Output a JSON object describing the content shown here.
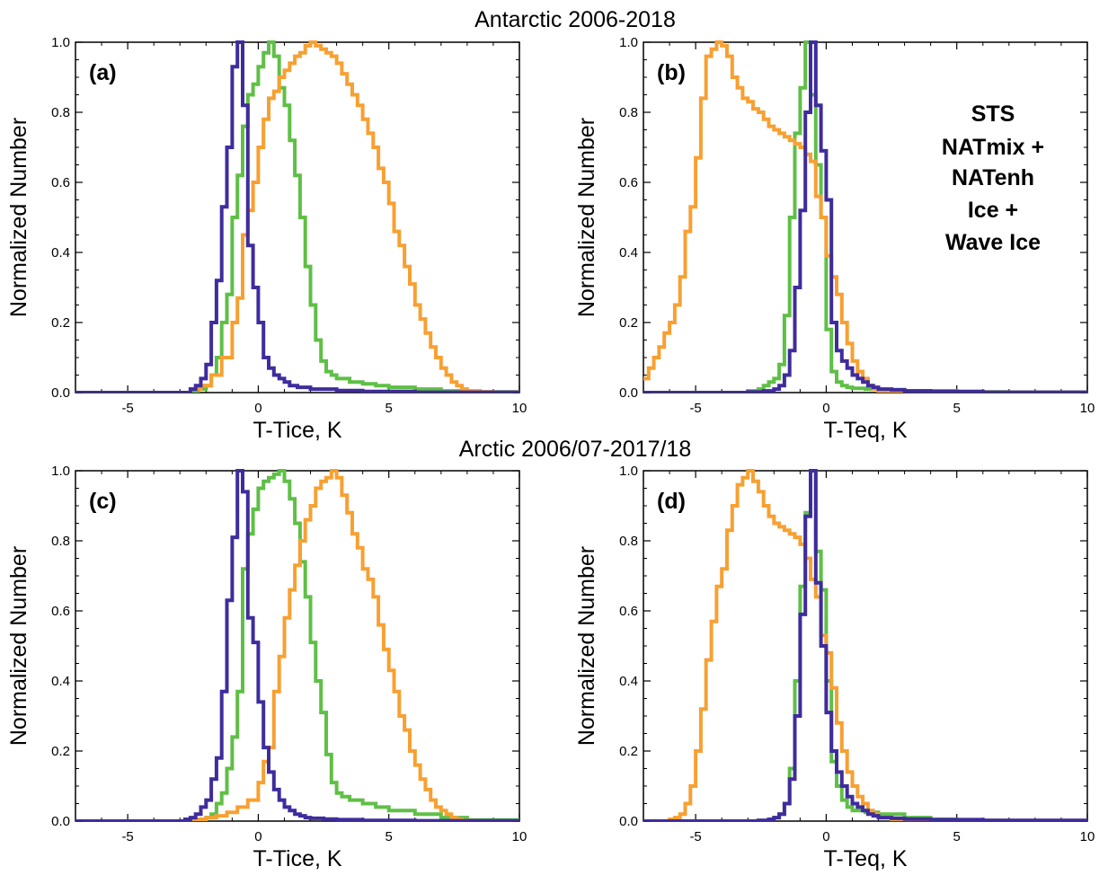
{
  "figure": {
    "row_titles": [
      "Antarctic 2006-2018",
      "Arctic 2006/07-2017/18"
    ],
    "colors": {
      "STS": "#5fbf46",
      "NAT": "#f7a032",
      "ICE": "#3f2c9c"
    },
    "legend": [
      {
        "label": "STS",
        "series": "STS"
      },
      {
        "label": "NATmix +",
        "series": "NAT"
      },
      {
        "label": "NATenh",
        "series": "NAT"
      },
      {
        "label": "Ice +",
        "series": "ICE"
      },
      {
        "label": "Wave Ice",
        "series": "ICE"
      }
    ]
  },
  "chart_data": [
    {
      "type": "line",
      "panel_label": "(a)",
      "xlabel": "T-Tice, K",
      "ylabel": "Normalized Number",
      "xlim": [
        -7,
        10
      ],
      "ylim": [
        0,
        1.0
      ],
      "xticks": [
        -5,
        0,
        5,
        10
      ],
      "yticks": [
        0.0,
        0.2,
        0.4,
        0.6,
        0.8,
        1.0
      ],
      "step": true,
      "series": [
        {
          "key": "STS",
          "x": [
            -7,
            -2.5,
            -2.3,
            -2.0,
            -1.8,
            -1.6,
            -1.4,
            -1.2,
            -1.0,
            -0.8,
            -0.6,
            -0.4,
            -0.2,
            0.0,
            0.2,
            0.4,
            0.6,
            0.8,
            1.0,
            1.2,
            1.4,
            1.6,
            1.8,
            2.0,
            2.2,
            2.4,
            2.6,
            2.8,
            3.0,
            3.5,
            4.0,
            4.5,
            5.0,
            6.0,
            7.0,
            8.0,
            10.0
          ],
          "y": [
            0,
            0,
            0.01,
            0.02,
            0.05,
            0.1,
            0.2,
            0.28,
            0.5,
            0.62,
            0.76,
            0.85,
            0.88,
            0.93,
            0.97,
            1.0,
            0.96,
            0.87,
            0.82,
            0.72,
            0.62,
            0.5,
            0.36,
            0.25,
            0.15,
            0.09,
            0.06,
            0.05,
            0.04,
            0.03,
            0.025,
            0.02,
            0.015,
            0.01,
            0.005,
            0.002,
            0
          ]
        },
        {
          "key": "NAT",
          "x": [
            -7,
            -2.6,
            -2.2,
            -1.8,
            -1.4,
            -1.0,
            -0.8,
            -0.6,
            -0.4,
            -0.2,
            0.0,
            0.2,
            0.4,
            0.6,
            0.8,
            1.0,
            1.2,
            1.4,
            1.6,
            1.8,
            2.0,
            2.2,
            2.4,
            2.6,
            2.8,
            3.0,
            3.2,
            3.4,
            3.6,
            3.8,
            4.0,
            4.2,
            4.4,
            4.6,
            4.8,
            5.0,
            5.2,
            5.4,
            5.6,
            5.8,
            6.0,
            6.2,
            6.4,
            6.6,
            6.8,
            7.0,
            7.2,
            7.4,
            7.6,
            7.8,
            8.0,
            8.5,
            9.0,
            10.0
          ],
          "y": [
            0,
            0.01,
            0.02,
            0.05,
            0.1,
            0.2,
            0.27,
            0.45,
            0.52,
            0.6,
            0.7,
            0.78,
            0.84,
            0.86,
            0.9,
            0.92,
            0.94,
            0.96,
            0.97,
            0.99,
            1.0,
            0.99,
            0.98,
            0.97,
            0.96,
            0.94,
            0.91,
            0.88,
            0.85,
            0.82,
            0.78,
            0.74,
            0.7,
            0.64,
            0.6,
            0.54,
            0.46,
            0.42,
            0.36,
            0.31,
            0.25,
            0.21,
            0.17,
            0.13,
            0.1,
            0.07,
            0.05,
            0.03,
            0.02,
            0.01,
            0.005,
            0.002,
            0.001,
            0
          ]
        },
        {
          "key": "ICE",
          "x": [
            -7,
            -3.0,
            -2.6,
            -2.4,
            -2.2,
            -2.0,
            -1.8,
            -1.6,
            -1.4,
            -1.2,
            -1.0,
            -0.8,
            -0.6,
            -0.4,
            -0.2,
            0.0,
            0.2,
            0.4,
            0.6,
            0.8,
            1.0,
            1.2,
            1.5,
            2.0,
            3.0,
            4.0,
            6.0,
            10.0
          ],
          "y": [
            0,
            0,
            0.01,
            0.02,
            0.04,
            0.08,
            0.2,
            0.32,
            0.53,
            0.7,
            0.93,
            1.0,
            0.82,
            0.42,
            0.3,
            0.2,
            0.1,
            0.07,
            0.05,
            0.04,
            0.03,
            0.02,
            0.015,
            0.01,
            0.006,
            0.003,
            0.001,
            0
          ]
        }
      ]
    },
    {
      "type": "line",
      "panel_label": "(b)",
      "xlabel": "T-Teq, K",
      "ylabel": "Normalized Number",
      "xlim": [
        -7,
        10
      ],
      "ylim": [
        0,
        1.0
      ],
      "xticks": [
        -5,
        0,
        5,
        10
      ],
      "yticks": [
        0.0,
        0.2,
        0.4,
        0.6,
        0.8,
        1.0
      ],
      "step": true,
      "series": [
        {
          "key": "STS",
          "x": [
            -7,
            -3.0,
            -2.6,
            -2.4,
            -2.2,
            -2.0,
            -1.8,
            -1.6,
            -1.4,
            -1.2,
            -1.0,
            -0.8,
            -0.6,
            -0.4,
            -0.2,
            0.0,
            0.2,
            0.4,
            0.6,
            0.8,
            1.0,
            1.5,
            2.0,
            3.0,
            5.0,
            7.0,
            10.0
          ],
          "y": [
            0,
            0.005,
            0.01,
            0.02,
            0.03,
            0.04,
            0.08,
            0.22,
            0.5,
            0.74,
            0.87,
            1.0,
            0.85,
            0.65,
            0.5,
            0.18,
            0.06,
            0.03,
            0.02,
            0.015,
            0.012,
            0.01,
            0.008,
            0.005,
            0.002,
            0.001,
            0
          ]
        },
        {
          "key": "NAT",
          "x": [
            -7,
            -6.8,
            -6.6,
            -6.4,
            -6.2,
            -6.0,
            -5.8,
            -5.6,
            -5.4,
            -5.2,
            -5.0,
            -4.8,
            -4.6,
            -4.4,
            -4.2,
            -4.0,
            -3.8,
            -3.6,
            -3.4,
            -3.2,
            -3.0,
            -2.8,
            -2.6,
            -2.4,
            -2.2,
            -2.0,
            -1.8,
            -1.6,
            -1.4,
            -1.2,
            -1.0,
            -0.8,
            -0.6,
            -0.4,
            -0.2,
            0.0,
            0.2,
            0.4,
            0.6,
            0.8,
            1.0,
            1.2,
            1.4,
            1.6,
            1.8,
            2.0,
            2.5,
            3.0,
            4.0,
            10.0
          ],
          "y": [
            0.04,
            0.07,
            0.1,
            0.13,
            0.17,
            0.2,
            0.25,
            0.33,
            0.46,
            0.53,
            0.67,
            0.84,
            0.96,
            0.98,
            1.0,
            0.99,
            0.96,
            0.9,
            0.87,
            0.84,
            0.83,
            0.81,
            0.8,
            0.78,
            0.76,
            0.75,
            0.74,
            0.73,
            0.72,
            0.71,
            0.7,
            0.68,
            0.66,
            0.56,
            0.5,
            0.39,
            0.33,
            0.28,
            0.2,
            0.14,
            0.09,
            0.06,
            0.04,
            0.02,
            0.01,
            0.005,
            0.003,
            0.002,
            0.001,
            0
          ]
        },
        {
          "key": "ICE",
          "x": [
            -7,
            -3.0,
            -2.4,
            -2.0,
            -1.8,
            -1.6,
            -1.4,
            -1.2,
            -1.0,
            -0.8,
            -0.6,
            -0.4,
            -0.2,
            0.0,
            0.2,
            0.4,
            0.6,
            0.8,
            1.0,
            1.2,
            1.4,
            1.6,
            1.8,
            2.0,
            2.5,
            3.0,
            4.0,
            6.0,
            10.0
          ],
          "y": [
            0,
            0.002,
            0.005,
            0.01,
            0.02,
            0.05,
            0.12,
            0.3,
            0.52,
            0.8,
            1.0,
            0.82,
            0.69,
            0.55,
            0.2,
            0.12,
            0.09,
            0.07,
            0.05,
            0.04,
            0.03,
            0.02,
            0.015,
            0.01,
            0.008,
            0.005,
            0.003,
            0.001,
            0
          ]
        }
      ]
    },
    {
      "type": "line",
      "panel_label": "(c)",
      "xlabel": "T-Tice, K",
      "ylabel": "Normalized Number",
      "xlim": [
        -7,
        10
      ],
      "ylim": [
        0,
        1.0
      ],
      "xticks": [
        -5,
        0,
        5,
        10
      ],
      "yticks": [
        0.0,
        0.2,
        0.4,
        0.6,
        0.8,
        1.0
      ],
      "step": true,
      "series": [
        {
          "key": "STS",
          "x": [
            -7,
            -2.4,
            -2.0,
            -1.8,
            -1.6,
            -1.4,
            -1.2,
            -1.0,
            -0.8,
            -0.6,
            -0.4,
            -0.2,
            0.0,
            0.2,
            0.4,
            0.6,
            0.8,
            1.0,
            1.2,
            1.4,
            1.6,
            1.8,
            2.0,
            2.2,
            2.4,
            2.6,
            2.8,
            3.0,
            3.2,
            3.5,
            4.0,
            4.5,
            5.0,
            6.0,
            7.0,
            8.0,
            10.0
          ],
          "y": [
            0,
            0.005,
            0.01,
            0.02,
            0.05,
            0.08,
            0.15,
            0.24,
            0.37,
            0.72,
            0.82,
            0.89,
            0.95,
            0.97,
            0.98,
            0.99,
            1.0,
            0.97,
            0.92,
            0.85,
            0.74,
            0.64,
            0.51,
            0.4,
            0.31,
            0.19,
            0.11,
            0.08,
            0.07,
            0.06,
            0.05,
            0.04,
            0.03,
            0.02,
            0.01,
            0.003,
            0
          ]
        },
        {
          "key": "NAT",
          "x": [
            -7,
            -2.4,
            -2.0,
            -1.6,
            -1.2,
            -0.8,
            -0.4,
            0.0,
            0.2,
            0.4,
            0.6,
            0.8,
            1.0,
            1.2,
            1.4,
            1.6,
            1.8,
            2.0,
            2.2,
            2.4,
            2.6,
            2.8,
            3.0,
            3.2,
            3.4,
            3.6,
            3.8,
            4.0,
            4.2,
            4.4,
            4.6,
            4.8,
            5.0,
            5.2,
            5.4,
            5.6,
            5.8,
            6.0,
            6.2,
            6.4,
            6.6,
            6.8,
            7.0,
            7.2,
            7.4,
            7.6,
            7.8,
            8.0,
            8.5,
            10.0
          ],
          "y": [
            0,
            0.005,
            0.01,
            0.015,
            0.025,
            0.04,
            0.06,
            0.11,
            0.17,
            0.21,
            0.37,
            0.47,
            0.58,
            0.66,
            0.73,
            0.8,
            0.86,
            0.9,
            0.95,
            0.97,
            0.98,
            1.0,
            0.98,
            0.93,
            0.88,
            0.82,
            0.78,
            0.72,
            0.69,
            0.64,
            0.56,
            0.49,
            0.43,
            0.37,
            0.3,
            0.26,
            0.2,
            0.16,
            0.12,
            0.09,
            0.06,
            0.04,
            0.03,
            0.02,
            0.01,
            0.005,
            0.002,
            0.001,
            0,
            0
          ]
        },
        {
          "key": "ICE",
          "x": [
            -7,
            -2.8,
            -2.6,
            -2.4,
            -2.2,
            -2.0,
            -1.8,
            -1.6,
            -1.4,
            -1.2,
            -1.0,
            -0.8,
            -0.6,
            -0.4,
            -0.2,
            0.0,
            0.2,
            0.4,
            0.6,
            0.8,
            1.0,
            1.2,
            1.4,
            1.6,
            1.8,
            2.0,
            2.5,
            3.0,
            4.0,
            6.0,
            10.0
          ],
          "y": [
            0,
            0.005,
            0.01,
            0.02,
            0.04,
            0.06,
            0.12,
            0.18,
            0.37,
            0.63,
            0.81,
            1.0,
            0.94,
            0.58,
            0.51,
            0.34,
            0.21,
            0.14,
            0.09,
            0.06,
            0.04,
            0.03,
            0.02,
            0.015,
            0.01,
            0.008,
            0.006,
            0.004,
            0.002,
            0.001,
            0
          ]
        }
      ]
    },
    {
      "type": "line",
      "panel_label": "(d)",
      "xlabel": "T-Teq, K",
      "ylabel": "Normalized Number",
      "xlim": [
        -7,
        10
      ],
      "ylim": [
        0,
        1.0
      ],
      "xticks": [
        -5,
        0,
        5,
        10
      ],
      "yticks": [
        0.0,
        0.2,
        0.4,
        0.6,
        0.8,
        1.0
      ],
      "step": true,
      "series": [
        {
          "key": "STS",
          "x": [
            -7,
            -2.6,
            -2.2,
            -2.0,
            -1.8,
            -1.6,
            -1.4,
            -1.2,
            -1.0,
            -0.8,
            -0.6,
            -0.4,
            -0.2,
            0.0,
            0.2,
            0.4,
            0.6,
            0.8,
            1.0,
            1.5,
            2.0,
            3.0,
            4.0,
            5.0,
            7.0,
            10.0
          ],
          "y": [
            0,
            0.002,
            0.005,
            0.01,
            0.02,
            0.05,
            0.15,
            0.4,
            0.67,
            0.88,
            1.0,
            0.77,
            0.66,
            0.4,
            0.17,
            0.1,
            0.06,
            0.04,
            0.03,
            0.025,
            0.02,
            0.01,
            0.005,
            0.002,
            0.001,
            0
          ]
        },
        {
          "key": "NAT",
          "x": [
            -7,
            -6.0,
            -5.8,
            -5.6,
            -5.4,
            -5.2,
            -5.0,
            -4.8,
            -4.6,
            -4.4,
            -4.2,
            -4.0,
            -3.8,
            -3.6,
            -3.4,
            -3.2,
            -3.0,
            -2.8,
            -2.6,
            -2.4,
            -2.2,
            -2.0,
            -1.8,
            -1.6,
            -1.4,
            -1.2,
            -1.0,
            -0.8,
            -0.6,
            -0.4,
            -0.2,
            0.0,
            0.2,
            0.4,
            0.6,
            0.8,
            1.0,
            1.2,
            1.4,
            1.6,
            1.8,
            2.0,
            2.5,
            3.0,
            10.0
          ],
          "y": [
            0,
            0.005,
            0.01,
            0.02,
            0.05,
            0.1,
            0.2,
            0.32,
            0.46,
            0.57,
            0.67,
            0.72,
            0.83,
            0.9,
            0.96,
            0.98,
            1.0,
            0.97,
            0.94,
            0.9,
            0.87,
            0.85,
            0.84,
            0.83,
            0.82,
            0.81,
            0.79,
            0.75,
            0.69,
            0.64,
            0.53,
            0.48,
            0.38,
            0.28,
            0.2,
            0.14,
            0.1,
            0.07,
            0.05,
            0.03,
            0.02,
            0.01,
            0.005,
            0.002,
            0
          ]
        },
        {
          "key": "ICE",
          "x": [
            -7,
            -2.6,
            -2.2,
            -2.0,
            -1.8,
            -1.6,
            -1.4,
            -1.2,
            -1.0,
            -0.8,
            -0.6,
            -0.4,
            -0.2,
            0.0,
            0.2,
            0.4,
            0.6,
            0.8,
            1.0,
            1.2,
            1.4,
            1.6,
            1.8,
            2.0,
            2.5,
            3.0,
            4.0,
            6.0,
            10.0
          ],
          "y": [
            0,
            0.002,
            0.005,
            0.01,
            0.02,
            0.05,
            0.12,
            0.3,
            0.59,
            0.87,
            1.0,
            0.68,
            0.5,
            0.31,
            0.2,
            0.14,
            0.1,
            0.07,
            0.05,
            0.04,
            0.03,
            0.02,
            0.015,
            0.01,
            0.008,
            0.006,
            0.004,
            0.002,
            0
          ]
        }
      ]
    }
  ]
}
